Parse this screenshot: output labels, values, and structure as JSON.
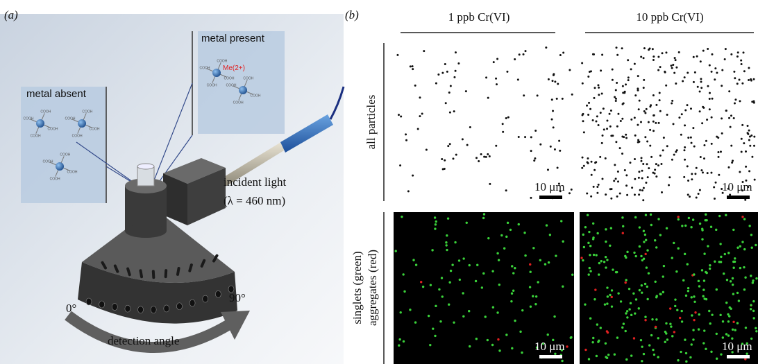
{
  "panel_a": {
    "label": "(a)",
    "metal_absent": "metal absent",
    "metal_present": "metal present",
    "ion": "Me(2+)",
    "ligand": "COOH",
    "incident_light": "incident light",
    "wavelength": "(λ = 460 nm)",
    "angle_start": "0°",
    "angle_end": "90°",
    "detection_angle": "detection angle"
  },
  "panel_b": {
    "label": "(b)",
    "columns": [
      "1 ppb Cr(VI)",
      "10 ppb Cr(VI)"
    ],
    "row_labels": [
      "all particles",
      "singlets (green)",
      "aggregates (red)"
    ],
    "scale_bar": "10 μm"
  }
}
